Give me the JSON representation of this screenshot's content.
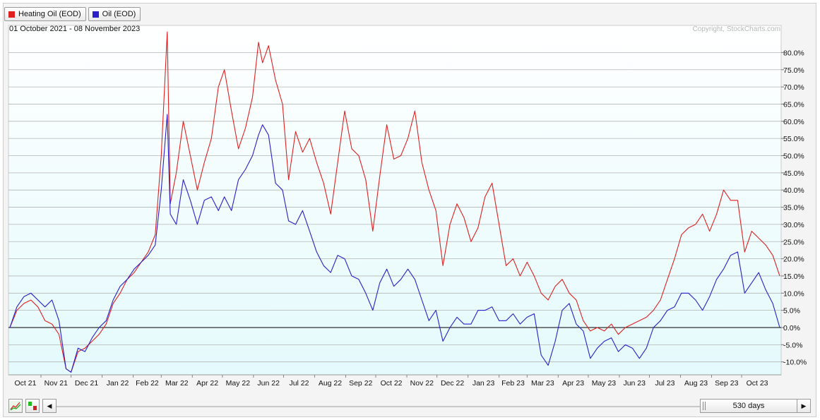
{
  "legend": {
    "items": [
      {
        "label": "Heating Oil (EOD)",
        "color": "#e02020"
      },
      {
        "label": "Oil (EOD)",
        "color": "#2a1fc8"
      }
    ]
  },
  "header": {
    "date_range": "01 October 2021 - 08 November 2023",
    "copyright": "Copyright, StockCharts.com"
  },
  "colors": {
    "heating_oil": "#e02020",
    "oil": "#2a1fc8",
    "plot_bg_top": "#ffffff",
    "plot_bg_bottom": "#e4fafc",
    "grid": "#b4b4b4",
    "zero_line": "#000000"
  },
  "bottom_bar": {
    "period_label": "530 days",
    "left_arrow": "◀",
    "right_arrow": "▶"
  },
  "chart_data": {
    "type": "line",
    "x_tick_labels": [
      "Oct 21",
      "Nov 21",
      "Dec 21",
      "Jan 22",
      "Feb 22",
      "Mar 22",
      "Apr 22",
      "May 22",
      "Jun 22",
      "Jul 22",
      "Aug 22",
      "Sep 22",
      "Oct 22",
      "Nov 22",
      "Dec 22",
      "Jan 23",
      "Feb 23",
      "Mar 23",
      "Apr 23",
      "May 23",
      "Jun 23",
      "Jul 23",
      "Aug 23",
      "Sep 23",
      "Oct 23"
    ],
    "x_range": [
      "2021-10-01",
      "2023-11-08"
    ],
    "y_unit": "percent change",
    "ylim": [
      -15,
      87
    ],
    "y_ticks": [
      -10,
      -5,
      0,
      5,
      10,
      15,
      20,
      25,
      30,
      35,
      40,
      45,
      50,
      55,
      60,
      65,
      70,
      75,
      80
    ],
    "y_tick_labels": [
      "-10.0%",
      "-5.0%",
      "0.0%",
      "5.0%",
      "10.0%",
      "15.0%",
      "20.0%",
      "25.0%",
      "30.0%",
      "35.0%",
      "40.0%",
      "45.0%",
      "50.0%",
      "55.0%",
      "60.0%",
      "65.0%",
      "70.0%",
      "75.0%",
      "80.0%"
    ],
    "grid": true,
    "series": [
      {
        "name": "Heating Oil (EOD)",
        "points": [
          [
            "2021-10-01",
            0
          ],
          [
            "2021-10-08",
            5
          ],
          [
            "2021-10-15",
            7
          ],
          [
            "2021-10-22",
            8
          ],
          [
            "2021-10-29",
            6
          ],
          [
            "2021-11-05",
            2
          ],
          [
            "2021-11-12",
            1
          ],
          [
            "2021-11-19",
            -2
          ],
          [
            "2021-11-26",
            -12
          ],
          [
            "2021-12-01",
            -13
          ],
          [
            "2021-12-08",
            -7
          ],
          [
            "2021-12-15",
            -6
          ],
          [
            "2021-12-22",
            -4
          ],
          [
            "2021-12-29",
            -2
          ],
          [
            "2022-01-05",
            1
          ],
          [
            "2022-01-12",
            7
          ],
          [
            "2022-01-19",
            10
          ],
          [
            "2022-01-26",
            14
          ],
          [
            "2022-02-02",
            16
          ],
          [
            "2022-02-09",
            19
          ],
          [
            "2022-02-16",
            22
          ],
          [
            "2022-02-23",
            27
          ],
          [
            "2022-03-01",
            50
          ],
          [
            "2022-03-07",
            86
          ],
          [
            "2022-03-10",
            36
          ],
          [
            "2022-03-16",
            45
          ],
          [
            "2022-03-23",
            60
          ],
          [
            "2022-03-30",
            50
          ],
          [
            "2022-04-06",
            40
          ],
          [
            "2022-04-13",
            48
          ],
          [
            "2022-04-20",
            55
          ],
          [
            "2022-04-27",
            70
          ],
          [
            "2022-05-03",
            75
          ],
          [
            "2022-05-10",
            63
          ],
          [
            "2022-05-17",
            52
          ],
          [
            "2022-05-24",
            58
          ],
          [
            "2022-05-31",
            67
          ],
          [
            "2022-06-06",
            83
          ],
          [
            "2022-06-10",
            77
          ],
          [
            "2022-06-16",
            82
          ],
          [
            "2022-06-23",
            72
          ],
          [
            "2022-06-30",
            65
          ],
          [
            "2022-07-06",
            43
          ],
          [
            "2022-07-13",
            57
          ],
          [
            "2022-07-20",
            51
          ],
          [
            "2022-07-27",
            55
          ],
          [
            "2022-08-03",
            48
          ],
          [
            "2022-08-10",
            42
          ],
          [
            "2022-08-17",
            33
          ],
          [
            "2022-08-24",
            48
          ],
          [
            "2022-08-31",
            63
          ],
          [
            "2022-09-07",
            52
          ],
          [
            "2022-09-14",
            50
          ],
          [
            "2022-09-21",
            43
          ],
          [
            "2022-09-28",
            28
          ],
          [
            "2022-10-05",
            44
          ],
          [
            "2022-10-12",
            59
          ],
          [
            "2022-10-19",
            49
          ],
          [
            "2022-10-26",
            50
          ],
          [
            "2022-11-02",
            55
          ],
          [
            "2022-11-09",
            63
          ],
          [
            "2022-11-16",
            48
          ],
          [
            "2022-11-23",
            40
          ],
          [
            "2022-11-30",
            34
          ],
          [
            "2022-12-07",
            18
          ],
          [
            "2022-12-14",
            30
          ],
          [
            "2022-12-21",
            36
          ],
          [
            "2022-12-28",
            32
          ],
          [
            "2023-01-04",
            25
          ],
          [
            "2023-01-11",
            29
          ],
          [
            "2023-01-18",
            38
          ],
          [
            "2023-01-25",
            42
          ],
          [
            "2023-02-01",
            30
          ],
          [
            "2023-02-08",
            18
          ],
          [
            "2023-02-15",
            20
          ],
          [
            "2023-02-22",
            15
          ],
          [
            "2023-03-01",
            19
          ],
          [
            "2023-03-08",
            15
          ],
          [
            "2023-03-15",
            10
          ],
          [
            "2023-03-22",
            8
          ],
          [
            "2023-03-29",
            12
          ],
          [
            "2023-04-05",
            14
          ],
          [
            "2023-04-12",
            10
          ],
          [
            "2023-04-19",
            8
          ],
          [
            "2023-04-26",
            2
          ],
          [
            "2023-05-03",
            -1
          ],
          [
            "2023-05-10",
            0
          ],
          [
            "2023-05-17",
            -1
          ],
          [
            "2023-05-24",
            1
          ],
          [
            "2023-05-31",
            -2
          ],
          [
            "2023-06-07",
            0
          ],
          [
            "2023-06-14",
            1
          ],
          [
            "2023-06-21",
            2
          ],
          [
            "2023-06-28",
            3
          ],
          [
            "2023-07-05",
            5
          ],
          [
            "2023-07-12",
            8
          ],
          [
            "2023-07-19",
            14
          ],
          [
            "2023-07-26",
            20
          ],
          [
            "2023-08-02",
            27
          ],
          [
            "2023-08-09",
            29
          ],
          [
            "2023-08-16",
            30
          ],
          [
            "2023-08-23",
            33
          ],
          [
            "2023-08-30",
            28
          ],
          [
            "2023-09-06",
            33
          ],
          [
            "2023-09-13",
            40
          ],
          [
            "2023-09-20",
            37
          ],
          [
            "2023-09-27",
            37
          ],
          [
            "2023-10-04",
            22
          ],
          [
            "2023-10-11",
            28
          ],
          [
            "2023-10-18",
            26
          ],
          [
            "2023-10-25",
            24
          ],
          [
            "2023-11-01",
            21
          ],
          [
            "2023-11-08",
            15
          ]
        ]
      },
      {
        "name": "Oil (EOD)",
        "points": [
          [
            "2021-10-01",
            0
          ],
          [
            "2021-10-08",
            6
          ],
          [
            "2021-10-15",
            9
          ],
          [
            "2021-10-22",
            10
          ],
          [
            "2021-10-29",
            8
          ],
          [
            "2021-11-05",
            6
          ],
          [
            "2021-11-12",
            8
          ],
          [
            "2021-11-19",
            2
          ],
          [
            "2021-11-26",
            -12
          ],
          [
            "2021-12-01",
            -13
          ],
          [
            "2021-12-08",
            -6
          ],
          [
            "2021-12-15",
            -7
          ],
          [
            "2021-12-22",
            -3
          ],
          [
            "2021-12-29",
            0
          ],
          [
            "2022-01-05",
            2
          ],
          [
            "2022-01-12",
            8
          ],
          [
            "2022-01-19",
            12
          ],
          [
            "2022-01-26",
            14
          ],
          [
            "2022-02-02",
            17
          ],
          [
            "2022-02-09",
            19
          ],
          [
            "2022-02-16",
            21
          ],
          [
            "2022-02-23",
            24
          ],
          [
            "2022-03-01",
            40
          ],
          [
            "2022-03-07",
            62
          ],
          [
            "2022-03-10",
            33
          ],
          [
            "2022-03-16",
            30
          ],
          [
            "2022-03-23",
            43
          ],
          [
            "2022-03-30",
            37
          ],
          [
            "2022-04-06",
            30
          ],
          [
            "2022-04-13",
            37
          ],
          [
            "2022-04-20",
            38
          ],
          [
            "2022-04-27",
            34
          ],
          [
            "2022-05-03",
            38
          ],
          [
            "2022-05-10",
            34
          ],
          [
            "2022-05-17",
            43
          ],
          [
            "2022-05-24",
            46
          ],
          [
            "2022-05-31",
            50
          ],
          [
            "2022-06-06",
            56
          ],
          [
            "2022-06-10",
            59
          ],
          [
            "2022-06-16",
            56
          ],
          [
            "2022-06-23",
            42
          ],
          [
            "2022-06-30",
            40
          ],
          [
            "2022-07-06",
            31
          ],
          [
            "2022-07-13",
            30
          ],
          [
            "2022-07-20",
            34
          ],
          [
            "2022-07-27",
            28
          ],
          [
            "2022-08-03",
            22
          ],
          [
            "2022-08-10",
            18
          ],
          [
            "2022-08-17",
            16
          ],
          [
            "2022-08-24",
            21
          ],
          [
            "2022-08-31",
            20
          ],
          [
            "2022-09-07",
            15
          ],
          [
            "2022-09-14",
            14
          ],
          [
            "2022-09-21",
            10
          ],
          [
            "2022-09-28",
            5
          ],
          [
            "2022-10-05",
            13
          ],
          [
            "2022-10-12",
            17
          ],
          [
            "2022-10-19",
            12
          ],
          [
            "2022-10-26",
            14
          ],
          [
            "2022-11-02",
            17
          ],
          [
            "2022-11-09",
            14
          ],
          [
            "2022-11-16",
            8
          ],
          [
            "2022-11-23",
            2
          ],
          [
            "2022-11-30",
            5
          ],
          [
            "2022-12-07",
            -4
          ],
          [
            "2022-12-14",
            0
          ],
          [
            "2022-12-21",
            3
          ],
          [
            "2022-12-28",
            1
          ],
          [
            "2023-01-04",
            1
          ],
          [
            "2023-01-11",
            5
          ],
          [
            "2023-01-18",
            5
          ],
          [
            "2023-01-25",
            6
          ],
          [
            "2023-02-01",
            2
          ],
          [
            "2023-02-08",
            2
          ],
          [
            "2023-02-15",
            4
          ],
          [
            "2023-02-22",
            1
          ],
          [
            "2023-03-01",
            3
          ],
          [
            "2023-03-08",
            4
          ],
          [
            "2023-03-15",
            -8
          ],
          [
            "2023-03-22",
            -11
          ],
          [
            "2023-03-29",
            -4
          ],
          [
            "2023-04-05",
            5
          ],
          [
            "2023-04-12",
            7
          ],
          [
            "2023-04-19",
            1
          ],
          [
            "2023-04-26",
            -1
          ],
          [
            "2023-05-03",
            -9
          ],
          [
            "2023-05-10",
            -6
          ],
          [
            "2023-05-17",
            -4
          ],
          [
            "2023-05-24",
            -3
          ],
          [
            "2023-05-31",
            -7
          ],
          [
            "2023-06-07",
            -5
          ],
          [
            "2023-06-14",
            -6
          ],
          [
            "2023-06-21",
            -9
          ],
          [
            "2023-06-28",
            -6
          ],
          [
            "2023-07-05",
            0
          ],
          [
            "2023-07-12",
            2
          ],
          [
            "2023-07-19",
            5
          ],
          [
            "2023-07-26",
            6
          ],
          [
            "2023-08-02",
            10
          ],
          [
            "2023-08-09",
            10
          ],
          [
            "2023-08-16",
            8
          ],
          [
            "2023-08-23",
            5
          ],
          [
            "2023-08-30",
            9
          ],
          [
            "2023-09-06",
            14
          ],
          [
            "2023-09-13",
            17
          ],
          [
            "2023-09-20",
            21
          ],
          [
            "2023-09-27",
            22
          ],
          [
            "2023-10-04",
            10
          ],
          [
            "2023-10-11",
            13
          ],
          [
            "2023-10-18",
            16
          ],
          [
            "2023-10-25",
            11
          ],
          [
            "2023-11-01",
            7
          ],
          [
            "2023-11-08",
            0
          ]
        ]
      }
    ]
  }
}
